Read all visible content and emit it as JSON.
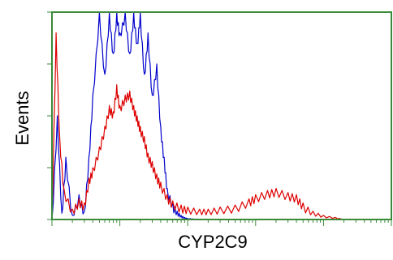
{
  "chart_data": {
    "type": "area",
    "title": "",
    "xlabel": "CYP2C9",
    "ylabel": "Events",
    "x_scale": "log",
    "xlim": [
      1,
      100000
    ],
    "ylim": [
      0,
      100
    ],
    "grid": false,
    "legend": "none",
    "series": [
      {
        "color": "#0000cc",
        "x": [
          1,
          1.2,
          1.4,
          1.6,
          2,
          2.5,
          3,
          3.5,
          4,
          5,
          6,
          7,
          8,
          9,
          10,
          12,
          14,
          16,
          18,
          20,
          23,
          26,
          30,
          35,
          40,
          45,
          50,
          60,
          70,
          80,
          90,
          100,
          120,
          140,
          160,
          200
        ],
        "y": [
          0,
          50,
          3,
          30,
          2,
          12,
          4,
          30,
          60,
          100,
          70,
          100,
          80,
          100,
          90,
          100,
          80,
          100,
          85,
          100,
          70,
          90,
          60,
          75,
          45,
          30,
          15,
          8,
          4,
          2,
          1,
          0.5,
          0.3,
          0.2,
          0.1,
          0
        ]
      },
      {
        "color": "#dd0000",
        "x": [
          1,
          1.15,
          1.3,
          1.5,
          2,
          2.5,
          3,
          3.5,
          4,
          5,
          6,
          7,
          8,
          9,
          10,
          12,
          14,
          16,
          18,
          20,
          23,
          26,
          30,
          35,
          40,
          50,
          60,
          80,
          100,
          150,
          200,
          300,
          500,
          800,
          1000,
          1500,
          2000,
          3000,
          4000,
          5000,
          7000,
          10000,
          15000,
          20000
        ],
        "y": [
          0,
          90,
          40,
          15,
          5,
          10,
          8,
          20,
          25,
          35,
          45,
          55,
          52,
          65,
          55,
          60,
          62,
          55,
          50,
          45,
          40,
          32,
          28,
          22,
          18,
          12,
          9,
          7,
          6,
          5,
          5,
          6,
          7,
          10,
          12,
          14,
          15,
          13,
          12,
          8,
          4,
          2,
          1,
          0
        ]
      }
    ]
  }
}
